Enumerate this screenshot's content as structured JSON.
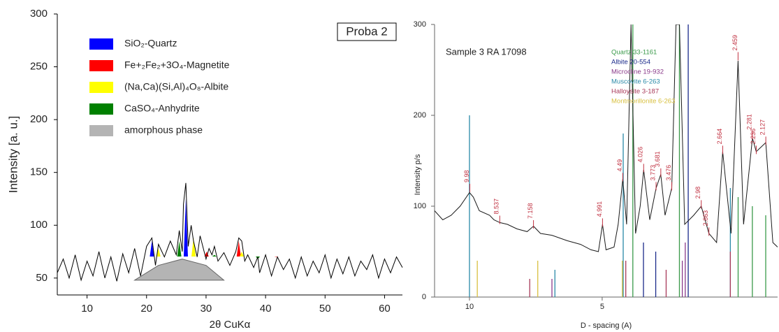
{
  "chart_data": [
    {
      "type": "line",
      "ylabel": "Intensity [a. u.]",
      "xlabel": "2θ CuKα",
      "annotation": "Proba 2",
      "xlim": [
        5,
        63
      ],
      "ylim": [
        34,
        300
      ],
      "xticks": [
        10,
        20,
        30,
        40,
        50,
        60
      ],
      "yticks": [
        50,
        100,
        150,
        200,
        250,
        300
      ],
      "color": "#000000",
      "x": [
        5,
        6,
        7,
        8,
        9,
        10,
        11,
        12,
        13,
        14,
        15,
        16,
        17,
        18,
        19,
        20,
        20.9,
        21.5,
        22,
        23,
        24,
        25,
        25.5,
        26,
        26.2,
        26.6,
        27,
        27.5,
        27.9,
        28.5,
        29,
        30,
        30.5,
        31,
        31.4,
        32,
        33,
        34,
        35,
        35.5,
        36,
        36.5,
        37,
        38,
        38.7,
        39,
        40,
        41,
        42,
        43,
        44,
        45,
        46,
        47,
        48,
        49,
        50,
        51,
        52,
        53,
        54,
        55,
        56,
        57,
        58,
        59,
        60,
        61,
        62,
        63
      ],
      "values": [
        55,
        68,
        50,
        72,
        48,
        66,
        52,
        75,
        50,
        70,
        47,
        73,
        55,
        78,
        52,
        80,
        88,
        62,
        82,
        70,
        85,
        72,
        95,
        75,
        120,
        140,
        80,
        100,
        85,
        70,
        90,
        68,
        78,
        72,
        80,
        66,
        74,
        62,
        75,
        88,
        85,
        66,
        72,
        60,
        70,
        55,
        72,
        52,
        70,
        58,
        68,
        50,
        70,
        52,
        66,
        55,
        72,
        50,
        68,
        54,
        70,
        52,
        66,
        58,
        72,
        50,
        68,
        55,
        70,
        60
      ],
      "phases": [
        {
          "name": "SiO₂-Quartz",
          "color": "#0000ff",
          "x": [
            20.9,
            26.6
          ],
          "values": [
            85,
            125
          ]
        },
        {
          "name": "Fe+₂Fe₂+3O₄-Magnetite",
          "color": "#ff0000",
          "x": [
            30.1,
            35.5,
            41.8
          ],
          "values": [
            75,
            85,
            70
          ]
        },
        {
          "name": "(Na,Ca)(Si,Al)₄O₈-Albite",
          "color": "#ffff00",
          "x": [
            22.0,
            27.9,
            36.0
          ],
          "values": [
            78,
            88,
            75
          ]
        },
        {
          "name": "CaSO₄-Anhydrite",
          "color": "#008000",
          "x": [
            25.5,
            31.4,
            38.7
          ],
          "values": [
            85,
            72,
            68
          ]
        }
      ],
      "amorphous": {
        "name": "amorphous phase",
        "color": "#b4b4b4",
        "x": [
          18,
          22,
          26,
          30,
          33
        ],
        "values": [
          48,
          62,
          68,
          62,
          48
        ]
      }
    },
    {
      "type": "line",
      "title": "Sample 3   RA 17098",
      "ylabel": "Intensity  p/s",
      "xlabel": "D - spacing (A)",
      "xscale": "log",
      "xlim": [
        12,
        2
      ],
      "ylim": [
        0,
        300
      ],
      "xticks": [
        10,
        5
      ],
      "yticks": [
        0,
        100,
        200,
        300
      ],
      "color": "#1a1a1a",
      "x": [
        12,
        11.5,
        11,
        10.5,
        10,
        9.8,
        9.5,
        9,
        8.8,
        8.537,
        8.2,
        7.8,
        7.4,
        7.158,
        6.9,
        6.5,
        6.0,
        5.6,
        5.3,
        5.1,
        4.991,
        4.9,
        4.7,
        4.6,
        4.49,
        4.4,
        4.3,
        4.2,
        4.1,
        4.026,
        3.9,
        3.773,
        3.681,
        3.6,
        3.476,
        3.4,
        3.34,
        3.25,
        3.1,
        2.98,
        2.863,
        2.75,
        2.664,
        2.55,
        2.459,
        2.389,
        2.281,
        2.236,
        2.127,
        2.05,
        2.0
      ],
      "values": [
        95,
        85,
        90,
        100,
        115,
        110,
        95,
        90,
        85,
        82,
        80,
        75,
        72,
        78,
        70,
        68,
        62,
        58,
        52,
        50,
        80,
        52,
        55,
        80,
        130,
        80,
        300,
        70,
        100,
        140,
        85,
        120,
        135,
        90,
        120,
        300,
        300,
        80,
        90,
        100,
        70,
        60,
        160,
        70,
        260,
        80,
        175,
        160,
        170,
        60,
        55
      ],
      "peaks": {
        "color": "#c03040",
        "d": [
          9.98,
          8.537,
          7.158,
          4.991,
          4.49,
          4.026,
          3.773,
          3.681,
          3.476,
          2.98,
          2.863,
          2.664,
          2.459,
          2.281,
          2.236,
          2.127
        ],
        "values": [
          120,
          85,
          80,
          82,
          132,
          142,
          122,
          137,
          122,
          102,
          72,
          162,
          265,
          178,
          162,
          172
        ]
      },
      "phases": [
        {
          "name": "Quartz 33-1161",
          "color": "#3a9a4a",
          "x": [
            4.26,
            3.34,
            2.458,
            2.282,
            2.128
          ],
          "values": [
            300,
            300,
            110,
            100,
            90
          ]
        },
        {
          "name": "Albite 20-554",
          "color": "#1a2a8a",
          "x": [
            4.03,
            3.78,
            3.19
          ],
          "values": [
            60,
            50,
            300
          ]
        },
        {
          "name": "Microcline 19-932",
          "color": "#8a3a8a",
          "x": [
            6.5,
            3.29,
            3.24
          ],
          "values": [
            20,
            40,
            60
          ]
        },
        {
          "name": "Muscovite 6-263",
          "color": "#2a8aa8",
          "x": [
            10.0,
            6.4,
            4.48,
            2.56
          ],
          "values": [
            200,
            30,
            180,
            120
          ]
        },
        {
          "name": "Halloysite 3-187",
          "color": "#a83a5a",
          "x": [
            7.3,
            4.42,
            3.58,
            2.56
          ],
          "values": [
            20,
            40,
            30,
            50
          ]
        },
        {
          "name": "Montmorillonite 6-263",
          "color": "#d8c040",
          "x": [
            9.6,
            7.0,
            4.5
          ],
          "values": [
            40,
            40,
            40
          ]
        }
      ]
    }
  ]
}
